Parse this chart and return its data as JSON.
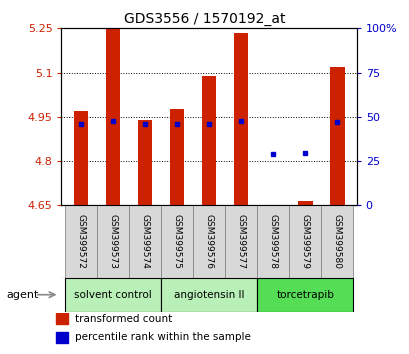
{
  "title": "GDS3556 / 1570192_at",
  "samples": [
    "GSM399572",
    "GSM399573",
    "GSM399574",
    "GSM399575",
    "GSM399576",
    "GSM399577",
    "GSM399578",
    "GSM399579",
    "GSM399580"
  ],
  "bar_values": [
    4.97,
    5.25,
    4.94,
    4.975,
    5.09,
    5.235,
    4.643,
    4.665,
    5.12
  ],
  "bar_bottom": 4.65,
  "percentile_values": [
    4.927,
    4.935,
    4.927,
    4.927,
    4.927,
    4.937,
    4.825,
    4.827,
    4.932
  ],
  "ylim": [
    4.65,
    5.25
  ],
  "yticks": [
    4.65,
    4.8,
    4.95,
    5.1,
    5.25
  ],
  "ytick_labels": [
    "4.65",
    "4.8",
    "4.95",
    "5.1",
    "5.25"
  ],
  "right_ytick_pcts": [
    0,
    25,
    50,
    75,
    100
  ],
  "right_ytick_labels": [
    "0",
    "25",
    "50",
    "75",
    "100%"
  ],
  "bar_color": "#cc2200",
  "percentile_color": "#0000cc",
  "groups": [
    {
      "label": "solvent control",
      "start": 0,
      "end": 2,
      "color": "#b8f0b8"
    },
    {
      "label": "angiotensin II",
      "start": 3,
      "end": 5,
      "color": "#b8f0b8"
    },
    {
      "label": "torcetrapib",
      "start": 6,
      "end": 8,
      "color": "#55dd55"
    }
  ],
  "agent_label": "agent",
  "legend_items": [
    {
      "label": "transformed count",
      "color": "#cc2200"
    },
    {
      "label": "percentile rank within the sample",
      "color": "#0000cc"
    }
  ],
  "bg_color": "#ffffff",
  "plot_bg": "#ffffff",
  "sample_bg": "#d8d8d8",
  "bar_width": 0.45
}
